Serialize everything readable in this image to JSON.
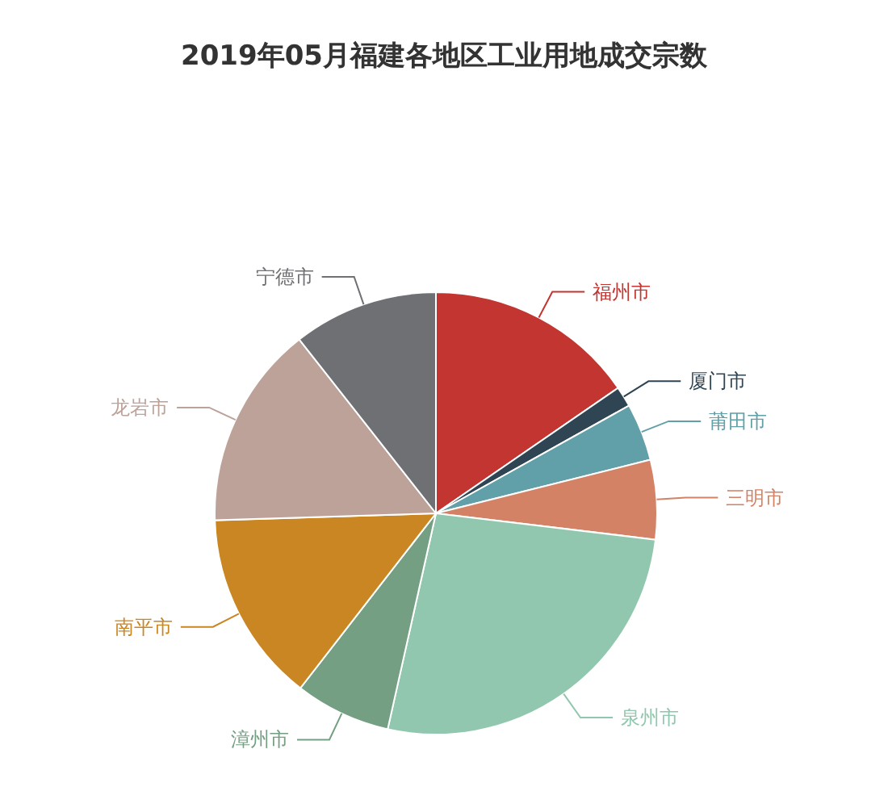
{
  "chart_data": {
    "type": "pie",
    "title": "2019年05月福建各地区工业用地成交宗数",
    "categories": [
      "福州市",
      "厦门市",
      "莆田市",
      "三明市",
      "泉州市",
      "漳州市",
      "南平市",
      "龙岩市",
      "宁德市"
    ],
    "values": [
      15.4,
      1.5,
      4.2,
      5.8,
      26.6,
      7.0,
      14.0,
      14.9,
      10.6
    ],
    "colors": [
      "#c23531",
      "#2f4554",
      "#61a0a8",
      "#d48265",
      "#91c7ae",
      "#749f83",
      "#ca8622",
      "#bda29a",
      "#6e7074"
    ]
  }
}
